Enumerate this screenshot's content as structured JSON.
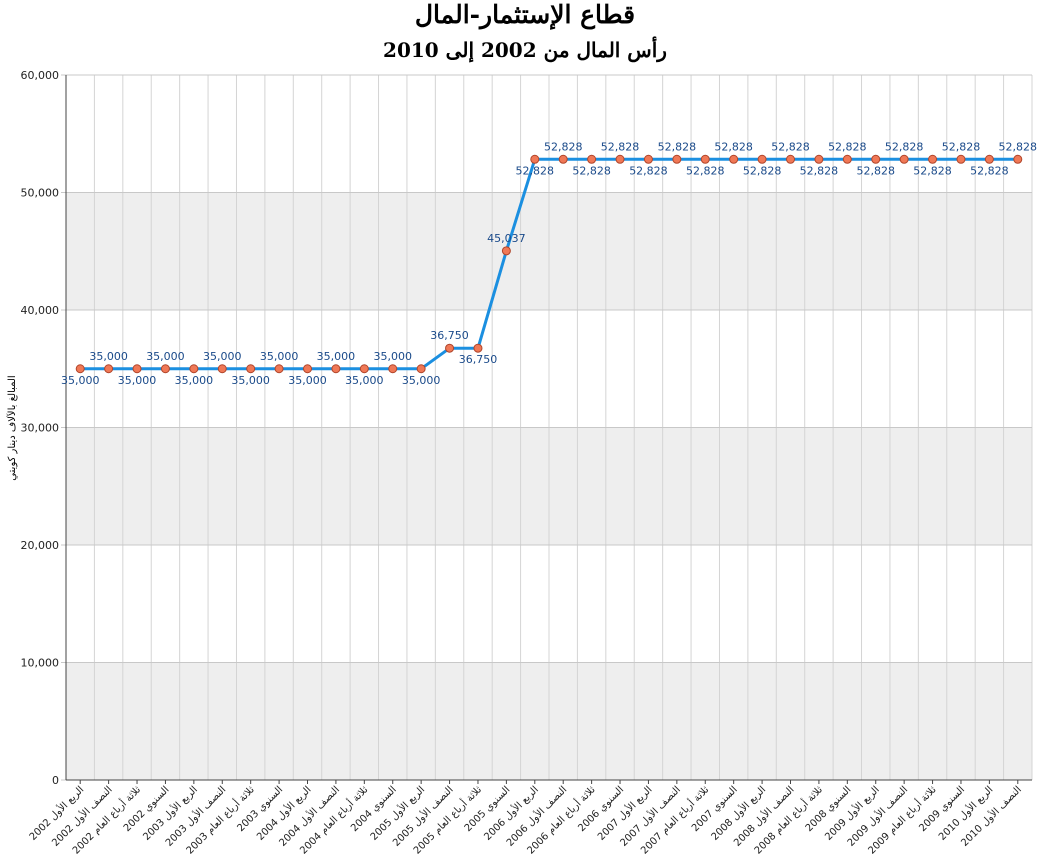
{
  "chart_data": {
    "type": "line",
    "title": "قطاع الإستثمار-المال",
    "subtitle": "رأس المال من 2002 إلى 2010",
    "ylabel": "المبالغ بالآلاف دينار كويتي",
    "xlabel": "",
    "ylim": [
      0,
      60000
    ],
    "yticks": [
      "0",
      "10,000",
      "20,000",
      "30,000",
      "40,000",
      "50,000",
      "60,000"
    ],
    "grid": true,
    "legend": "none",
    "colors": {
      "line": "#1b8fe0",
      "marker_fill": "#f07856",
      "marker_stroke": "#b0452a",
      "label": "#1a4a8a",
      "band": "#eeeeee"
    },
    "categories": [
      "الربع الأول 2002",
      "النصف الأول 2002",
      "ثلاثة أرباع العام 2002",
      "السنوي 2002",
      "الربع الأول 2003",
      "النصف الأول 2003",
      "ثلاثة أرباع العام 2003",
      "السنوي 2003",
      "الربع الأول 2004",
      "النصف الأول 2004",
      "ثلاثة أرباع العام 2004",
      "السنوي 2004",
      "الربع الأول 2005",
      "النصف الأول 2005",
      "ثلاثة أرباع العام 2005",
      "السنوي 2005",
      "الربع الأول 2006",
      "النصف الأول 2006",
      "ثلاثة أرباع العام 2006",
      "السنوي 2006",
      "الربع الأول 2007",
      "النصف الأول 2007",
      "ثلاثة أرباع العام 2007",
      "السنوي 2007",
      "الربع الأول 2008",
      "النصف الأول 2008",
      "ثلاثة أرباع العام 2008",
      "السنوي 2008",
      "الربع الأول 2009",
      "النصف الأول 2009",
      "ثلاثة أرباع العام 2009",
      "السنوي 2009",
      "الربع الأول 2010",
      "النصف الأول 2010"
    ],
    "series": [
      {
        "values": [
          35000,
          35000,
          35000,
          35000,
          35000,
          35000,
          35000,
          35000,
          35000,
          35000,
          35000,
          35000,
          35000,
          36750,
          36750,
          45037,
          52828,
          52828,
          52828,
          52828,
          52828,
          52828,
          52828,
          52828,
          52828,
          52828,
          52828,
          52828,
          52828,
          52828,
          52828,
          52828,
          52828,
          52828
        ],
        "data_labels": [
          "35,000",
          "35,000",
          "35,000",
          "35,000",
          "35,000",
          "35,000",
          "35,000",
          "35,000",
          "35,000",
          "35,000",
          "35,000",
          "35,000",
          "35,000",
          "36,750",
          "36,750",
          "45,037",
          "52,828",
          "52,828",
          "52,828",
          "52,828",
          "52,828",
          "52,828",
          "52,828",
          "52,828",
          "52,828",
          "52,828",
          "52,828",
          "52,828",
          "52,828",
          "52,828",
          "52,828",
          "52,828",
          "52,828",
          "52,828"
        ]
      }
    ]
  }
}
